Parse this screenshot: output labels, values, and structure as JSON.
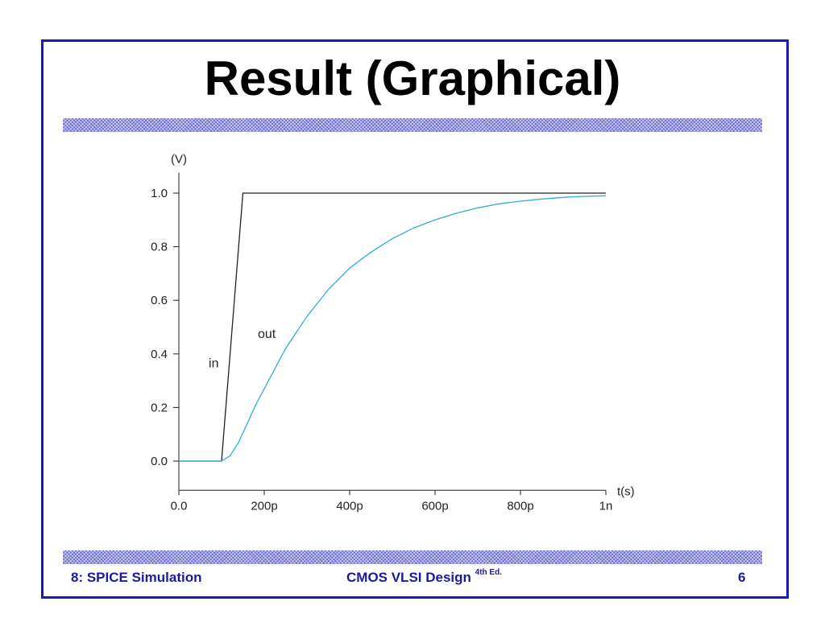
{
  "slide": {
    "title": "Result (Graphical)",
    "footer_left": "8: SPICE Simulation",
    "footer_center": "CMOS VLSI Design",
    "footer_center_sup": "4th Ed.",
    "footer_right": "6",
    "border_color": "#1a1ab4",
    "band_color": "#6b6bd0",
    "footer_color": "#1a1aa0"
  },
  "chart_data": {
    "type": "line",
    "ylabel": "(V)",
    "xlabel": "t(s)",
    "xlim": [
      0,
      1000
    ],
    "ylim": [
      -0.1,
      1.1
    ],
    "x_ticks": [
      0,
      200,
      400,
      600,
      800,
      1000
    ],
    "x_tick_labels": [
      "0.0",
      "200p",
      "400p",
      "600p",
      "800p",
      "1n"
    ],
    "y_ticks": [
      0,
      0.2,
      0.4,
      0.6,
      0.8,
      1.0
    ],
    "y_tick_labels": [
      "0.0",
      "0.2",
      "0.4",
      "0.6",
      "0.8",
      "1.0"
    ],
    "grid": false,
    "series": [
      {
        "name": "in",
        "color": "#222222",
        "x": [
          0,
          100,
          150,
          1000
        ],
        "y": [
          0,
          0,
          1.0,
          1.0
        ]
      },
      {
        "name": "out",
        "color": "#33aadd",
        "x": [
          0,
          100,
          120,
          140,
          160,
          180,
          200,
          250,
          300,
          350,
          400,
          450,
          500,
          550,
          600,
          650,
          700,
          750,
          800,
          850,
          900,
          950,
          1000
        ],
        "y": [
          0,
          0,
          0.02,
          0.07,
          0.14,
          0.21,
          0.27,
          0.42,
          0.54,
          0.64,
          0.72,
          0.78,
          0.83,
          0.87,
          0.9,
          0.925,
          0.945,
          0.96,
          0.97,
          0.978,
          0.984,
          0.988,
          0.99
        ]
      }
    ],
    "annotations": [
      {
        "text": "in",
        "x": 85,
        "y": 0.35
      },
      {
        "text": "out",
        "x": 200,
        "y": 0.46
      }
    ]
  }
}
